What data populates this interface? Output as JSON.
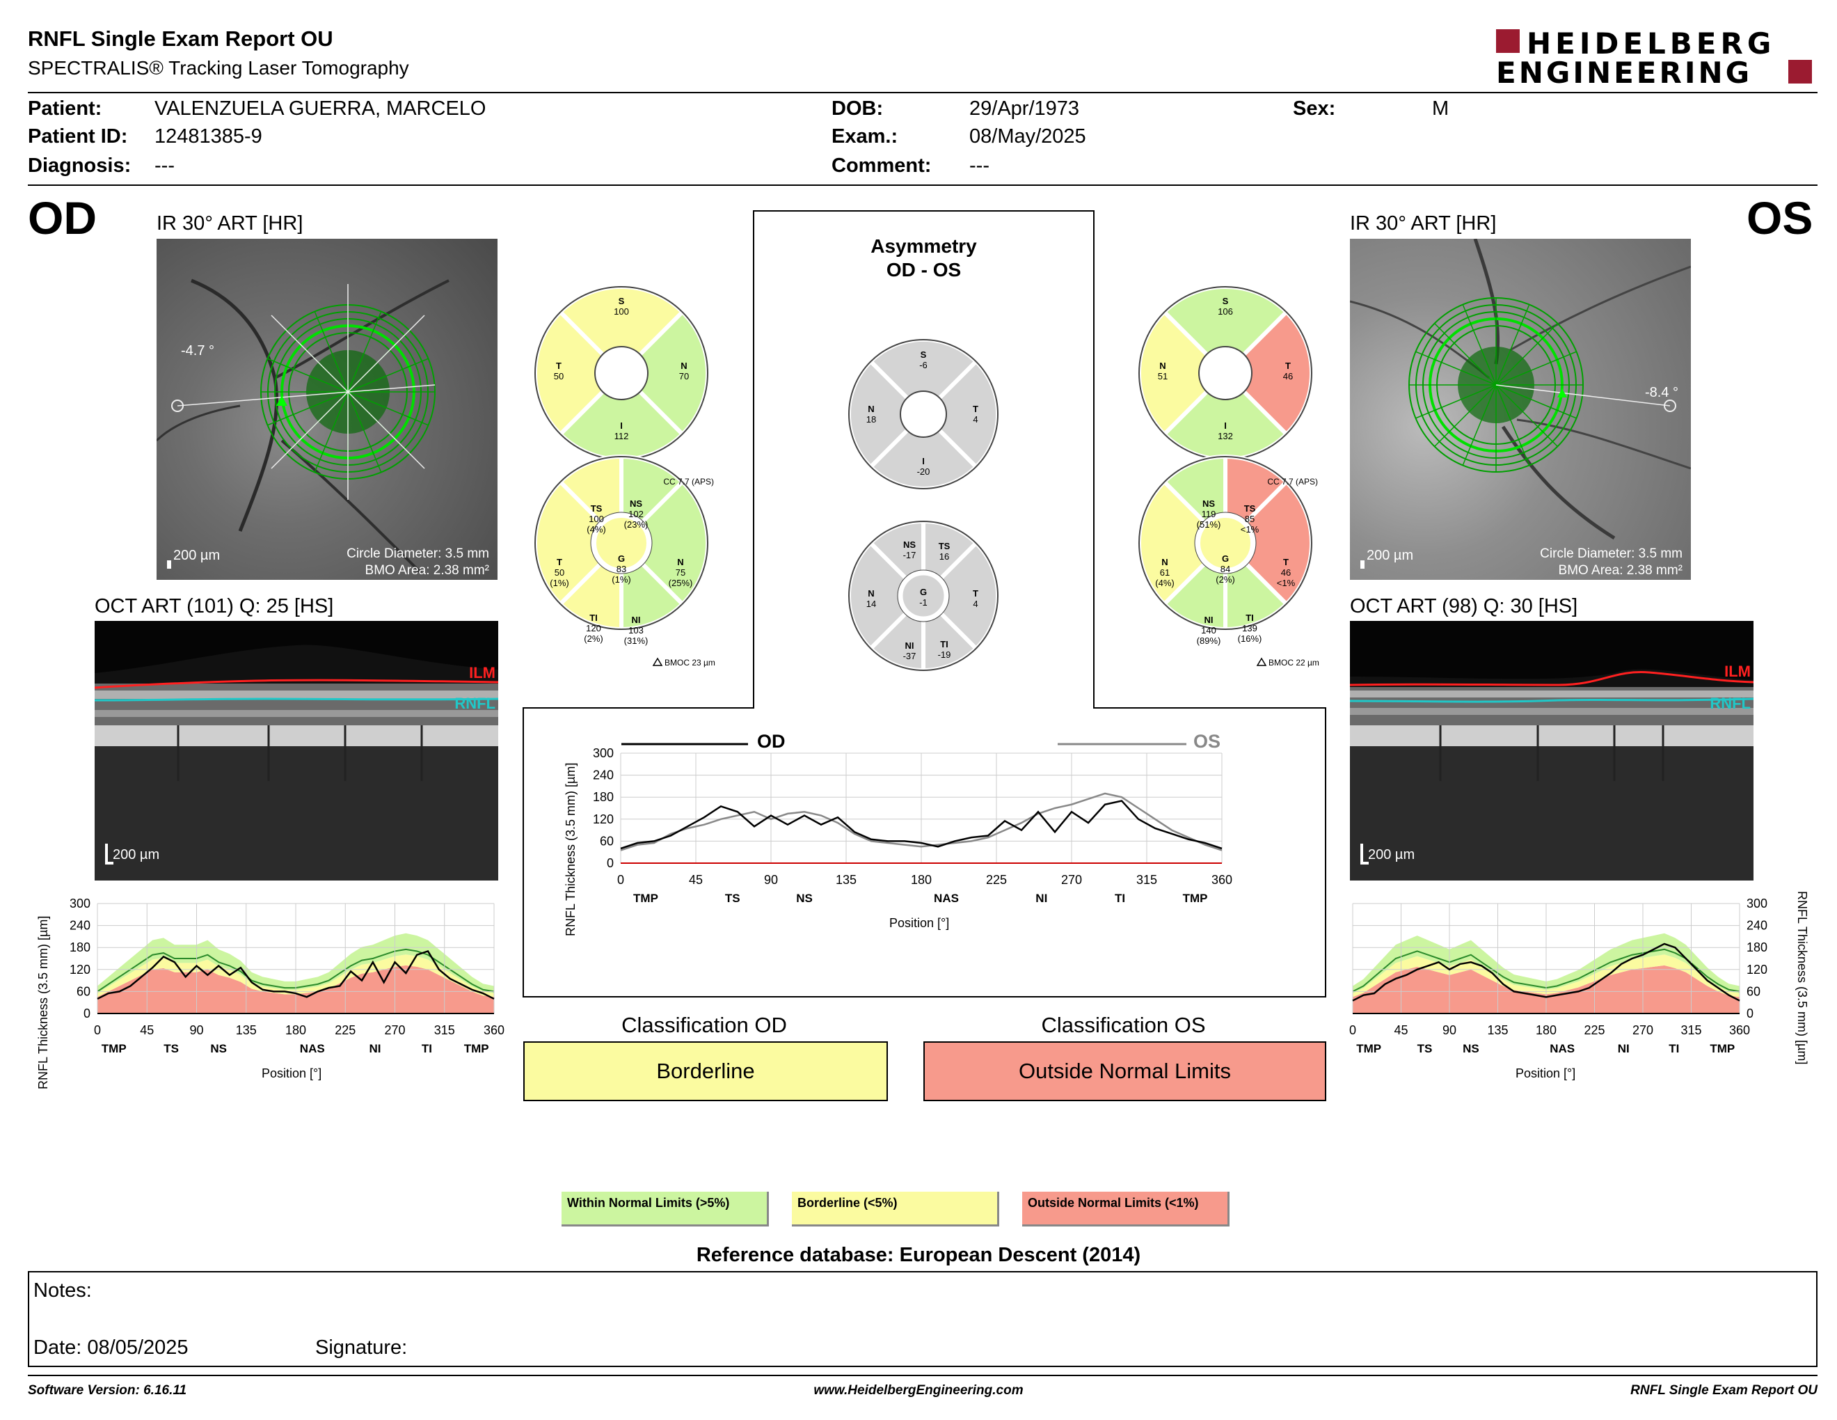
{
  "header": {
    "title": "RNFL Single Exam Report OU",
    "subtitle": "SPECTRALIS® Tracking Laser Tomography",
    "logo_line1": "HEIDELBERG",
    "logo_line2": "ENGINEERING"
  },
  "patient": {
    "patient_label": "Patient:",
    "patient_value": "VALENZUELA GUERRA, MARCELO",
    "id_label": "Patient ID:",
    "id_value": "12481385-9",
    "diagnosis_label": "Diagnosis:",
    "diagnosis_value": "---",
    "dob_label": "DOB:",
    "dob_value": "29/Apr/1973",
    "exam_label": "Exam.:",
    "exam_value": "08/May/2025",
    "comment_label": "Comment:",
    "comment_value": "---",
    "sex_label": "Sex:",
    "sex_value": "M"
  },
  "od": {
    "eye": "OD",
    "ir_title": "IR 30° ART [HR]",
    "angle": "-4.7 °",
    "scale": "200 µm",
    "circle_diameter": "Circle Diameter: 3.5 mm",
    "bmo_area": "BMO Area: 2.38 mm²",
    "oct_title": "OCT ART (101) Q: 25 [HS]",
    "oct_scale": "200 µm",
    "ilm": "ILM",
    "rnfl": "RNFL",
    "cc": "CC 7.7 (APS)",
    "bmoc": "BMOC 23 µm",
    "quad": {
      "S": "100",
      "T": "50",
      "N": "70",
      "I": "112"
    },
    "sectors": {
      "TS": [
        "TS",
        "100",
        "(4%)"
      ],
      "NS": [
        "NS",
        "102",
        "(23%)"
      ],
      "T": [
        "T",
        "50",
        "(1%)"
      ],
      "G": [
        "G",
        "83",
        "(1%)"
      ],
      "N": [
        "N",
        "75",
        "(25%)"
      ],
      "TI": [
        "TI",
        "120",
        "(2%)"
      ],
      "NI": [
        "NI",
        "103",
        "(31%)"
      ]
    }
  },
  "os": {
    "eye": "OS",
    "ir_title": "IR 30° ART [HR]",
    "angle": "-8.4 °",
    "scale": "200 µm",
    "circle_diameter": "Circle Diameter: 3.5 mm",
    "bmo_area": "BMO Area: 2.38 mm²",
    "oct_title": "OCT ART (98) Q: 30 [HS]",
    "oct_scale": "200 µm",
    "ilm": "ILM",
    "rnfl": "RNFL",
    "cc": "CC 7.7 (APS)",
    "bmoc": "BMOC 22 µm",
    "quad": {
      "S": "106",
      "N": "51",
      "T": "46",
      "I": "132"
    },
    "sectors": {
      "NS": [
        "NS",
        "119",
        "(51%)"
      ],
      "TS": [
        "TS",
        "85",
        "<1%"
      ],
      "N": [
        "N",
        "61",
        "(4%)"
      ],
      "G": [
        "G",
        "84",
        "(2%)"
      ],
      "T": [
        "T",
        "46",
        "<1%"
      ],
      "NI": [
        "NI",
        "140",
        "(89%)"
      ],
      "TI": [
        "TI",
        "139",
        "(16%)"
      ]
    }
  },
  "asymmetry": {
    "title1": "Asymmetry",
    "title2": "OD - OS",
    "quad": {
      "S": "-6",
      "N": "18",
      "T": "4",
      "I": "-20"
    },
    "sectors": {
      "NS": [
        "NS",
        "-17"
      ],
      "TS": [
        "TS",
        "16"
      ],
      "N": [
        "N",
        "14"
      ],
      "G": [
        "G",
        "-1"
      ],
      "T": [
        "T",
        "4"
      ],
      "NI": [
        "NI",
        "-37"
      ],
      "TI": [
        "TI",
        "-19"
      ]
    }
  },
  "axes": {
    "ylabel": "RNFL Thickness (3.5 mm) [µm]",
    "ylabel_center": "RNFL Thickness (3.5 mm) [µm]",
    "xlabel": "Position [°]",
    "y_ticks": [
      "300",
      "240",
      "180",
      "120",
      "60",
      "0"
    ],
    "x_ticks": [
      "0",
      "45",
      "90",
      "135",
      "180",
      "225",
      "270",
      "315",
      "360"
    ],
    "sectors_od": [
      "TMP",
      "TS",
      "NS",
      "NAS",
      "NI",
      "TI",
      "TMP"
    ],
    "legend_od": "OD",
    "legend_os": "OS"
  },
  "classification": {
    "od_title": "Classification OD",
    "od_value": "Borderline",
    "os_title": "Classification OS",
    "os_value": "Outside Normal Limits"
  },
  "legend": {
    "within": "Within Normal Limits (>5%)",
    "borderline": "Borderline (<5%)",
    "outside": "Outside Normal Limits (<1%)"
  },
  "reference": "Reference database: European Descent (2014)",
  "notes": {
    "notes_label": "Notes:",
    "date": "Date: 08/05/2025",
    "signature": "Signature:"
  },
  "footer": {
    "software": "Software Version: 6.16.11",
    "url": "www.HeidelbergEngineering.com",
    "report": "RNFL Single Exam Report OU"
  },
  "colors": {
    "green": "#ccf5a0",
    "yellow": "#fbfba0",
    "red": "#f79a8c",
    "gray": "#d4d4d4",
    "logo_red": "#9b1b30"
  },
  "chart_data": [
    {
      "type": "line",
      "name": "OD TSNIT",
      "x": [
        0,
        10,
        20,
        30,
        40,
        50,
        60,
        70,
        80,
        90,
        100,
        110,
        120,
        130,
        140,
        150,
        160,
        170,
        180,
        190,
        200,
        210,
        220,
        230,
        240,
        250,
        260,
        270,
        280,
        290,
        300,
        310,
        320,
        330,
        340,
        350,
        360
      ],
      "values": [
        40,
        55,
        60,
        75,
        100,
        125,
        155,
        140,
        100,
        130,
        105,
        130,
        105,
        125,
        85,
        65,
        60,
        60,
        55,
        45,
        60,
        70,
        75,
        115,
        90,
        140,
        85,
        140,
        110,
        160,
        170,
        120,
        95,
        80,
        65,
        55,
        40
      ],
      "ylim": [
        0,
        300
      ],
      "xlim": [
        0,
        360
      ]
    },
    {
      "type": "line",
      "name": "OS TSNIT",
      "x": [
        0,
        10,
        20,
        30,
        40,
        50,
        60,
        70,
        80,
        90,
        100,
        110,
        120,
        130,
        140,
        150,
        160,
        170,
        180,
        190,
        200,
        210,
        220,
        230,
        240,
        250,
        260,
        270,
        280,
        290,
        300,
        310,
        320,
        330,
        340,
        350,
        360
      ],
      "values": [
        35,
        50,
        55,
        80,
        95,
        105,
        120,
        130,
        140,
        120,
        135,
        140,
        130,
        110,
        80,
        60,
        55,
        50,
        45,
        50,
        55,
        60,
        70,
        90,
        110,
        135,
        150,
        160,
        175,
        190,
        180,
        150,
        120,
        90,
        70,
        50,
        35
      ],
      "ylim": [
        0,
        300
      ],
      "xlim": [
        0,
        360
      ]
    }
  ]
}
